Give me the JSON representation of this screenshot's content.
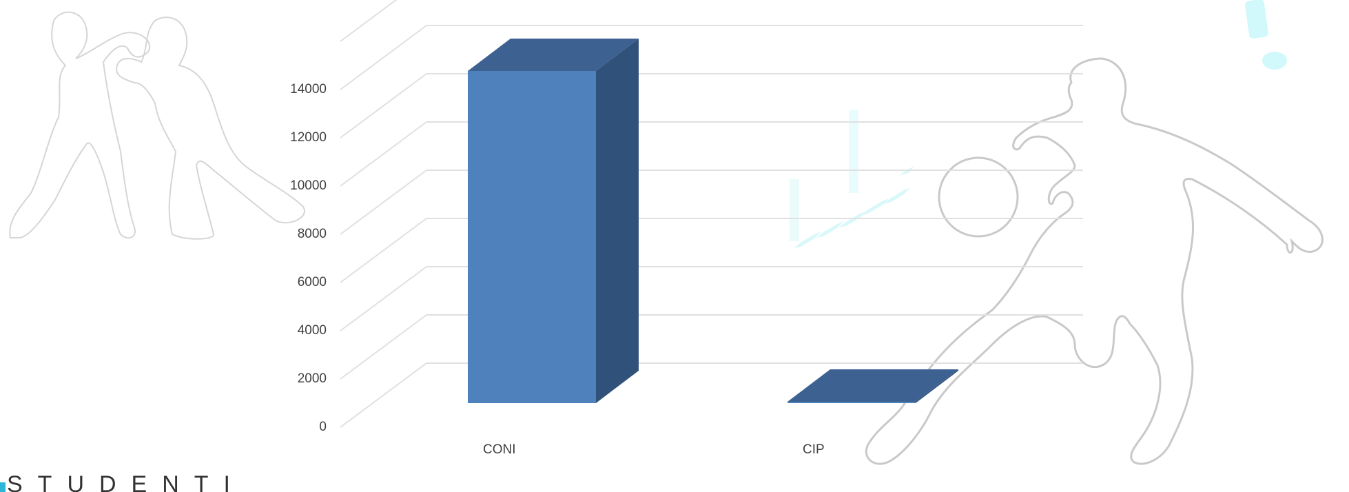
{
  "chart_data": {
    "type": "bar",
    "categories": [
      "CONI",
      "CIP"
    ],
    "values": [
      14400,
      30
    ],
    "yticks": [
      0,
      2000,
      4000,
      6000,
      8000,
      10000,
      12000,
      14000
    ],
    "ylim": [
      0,
      16000
    ],
    "grid": true,
    "legend": "none",
    "title": "",
    "xlabel": "",
    "ylabel": "",
    "colors": {
      "front": "#4f81bd",
      "side": "#30527a",
      "top": "#3d6190"
    }
  },
  "branding": {
    "text": "STUDENTI",
    "accent": "#2cb7d9"
  },
  "decor": {
    "silhouettes": [
      "boxers",
      "basketball-player"
    ],
    "accent_color": "#b5f4f7",
    "outline_color": "#cfcfcf"
  }
}
